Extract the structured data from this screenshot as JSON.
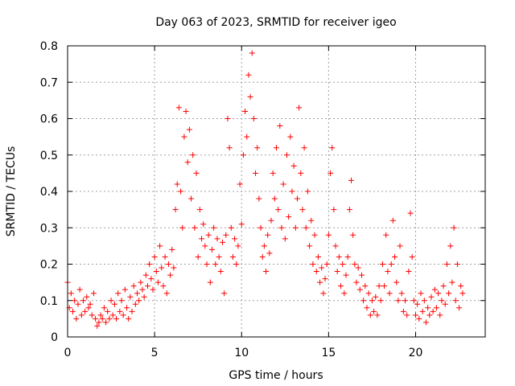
{
  "chart_data": {
    "type": "scatter",
    "title": "Day 063 of 2023, SRMTID for receiver igeo",
    "xlabel": "GPS time / hours",
    "ylabel": "SRMTID / TECUs",
    "xlim": [
      0,
      24
    ],
    "ylim": [
      0,
      0.8
    ],
    "xticks": [
      0,
      5,
      10,
      15,
      20
    ],
    "xtick_labels": [
      "0",
      "5",
      "10",
      "15",
      "20"
    ],
    "yticks": [
      0,
      0.1,
      0.2,
      0.3,
      0.4,
      0.5,
      0.6,
      0.7,
      0.8
    ],
    "ytick_labels": [
      "0",
      "0.1",
      "0.2",
      "0.3",
      "0.4",
      "0.5",
      "0.6",
      "0.7",
      "0.8"
    ],
    "grid": true,
    "marker": "plus",
    "color": "#ff0000",
    "series": [
      {
        "name": "SRMTID",
        "points": [
          [
            0.0,
            0.15
          ],
          [
            0.1,
            0.08
          ],
          [
            0.2,
            0.12
          ],
          [
            0.3,
            0.07
          ],
          [
            0.4,
            0.1
          ],
          [
            0.5,
            0.05
          ],
          [
            0.6,
            0.09
          ],
          [
            0.7,
            0.13
          ],
          [
            0.8,
            0.06
          ],
          [
            0.9,
            0.1
          ],
          [
            1.0,
            0.07
          ],
          [
            1.1,
            0.11
          ],
          [
            1.2,
            0.08
          ],
          [
            1.3,
            0.09
          ],
          [
            1.4,
            0.06
          ],
          [
            1.5,
            0.12
          ],
          [
            1.6,
            0.05
          ],
          [
            1.7,
            0.03
          ],
          [
            1.8,
            0.04
          ],
          [
            1.9,
            0.06
          ],
          [
            2.0,
            0.05
          ],
          [
            2.1,
            0.08
          ],
          [
            2.2,
            0.04
          ],
          [
            2.3,
            0.07
          ],
          [
            2.4,
            0.05
          ],
          [
            2.5,
            0.1
          ],
          [
            2.6,
            0.06
          ],
          [
            2.7,
            0.09
          ],
          [
            2.8,
            0.05
          ],
          [
            2.9,
            0.12
          ],
          [
            3.0,
            0.07
          ],
          [
            3.1,
            0.1
          ],
          [
            3.2,
            0.06
          ],
          [
            3.3,
            0.13
          ],
          [
            3.4,
            0.08
          ],
          [
            3.5,
            0.05
          ],
          [
            3.6,
            0.11
          ],
          [
            3.7,
            0.07
          ],
          [
            3.8,
            0.14
          ],
          [
            3.9,
            0.09
          ],
          [
            4.0,
            0.12
          ],
          [
            4.1,
            0.1
          ],
          [
            4.2,
            0.15
          ],
          [
            4.3,
            0.13
          ],
          [
            4.4,
            0.11
          ],
          [
            4.5,
            0.17
          ],
          [
            4.6,
            0.14
          ],
          [
            4.7,
            0.2
          ],
          [
            4.8,
            0.16
          ],
          [
            4.9,
            0.13
          ],
          [
            5.0,
            0.22
          ],
          [
            5.1,
            0.18
          ],
          [
            5.2,
            0.15
          ],
          [
            5.3,
            0.25
          ],
          [
            5.4,
            0.19
          ],
          [
            5.5,
            0.14
          ],
          [
            5.6,
            0.22
          ],
          [
            5.7,
            0.12
          ],
          [
            5.8,
            0.2
          ],
          [
            5.9,
            0.17
          ],
          [
            6.0,
            0.24
          ],
          [
            6.1,
            0.19
          ],
          [
            6.2,
            0.35
          ],
          [
            6.3,
            0.42
          ],
          [
            6.4,
            0.63
          ],
          [
            6.5,
            0.4
          ],
          [
            6.6,
            0.3
          ],
          [
            6.7,
            0.55
          ],
          [
            6.8,
            0.62
          ],
          [
            6.9,
            0.48
          ],
          [
            7.0,
            0.57
          ],
          [
            7.1,
            0.38
          ],
          [
            7.2,
            0.5
          ],
          [
            7.3,
            0.3
          ],
          [
            7.4,
            0.45
          ],
          [
            7.5,
            0.22
          ],
          [
            7.6,
            0.35
          ],
          [
            7.7,
            0.27
          ],
          [
            7.8,
            0.31
          ],
          [
            7.9,
            0.25
          ],
          [
            8.0,
            0.2
          ],
          [
            8.1,
            0.28
          ],
          [
            8.2,
            0.15
          ],
          [
            8.3,
            0.24
          ],
          [
            8.4,
            0.3
          ],
          [
            8.5,
            0.2
          ],
          [
            8.6,
            0.27
          ],
          [
            8.7,
            0.22
          ],
          [
            8.8,
            0.18
          ],
          [
            8.9,
            0.26
          ],
          [
            9.0,
            0.12
          ],
          [
            9.1,
            0.28
          ],
          [
            9.2,
            0.6
          ],
          [
            9.3,
            0.52
          ],
          [
            9.4,
            0.3
          ],
          [
            9.5,
            0.22
          ],
          [
            9.6,
            0.27
          ],
          [
            9.7,
            0.2
          ],
          [
            9.8,
            0.25
          ],
          [
            9.9,
            0.42
          ],
          [
            10.0,
            0.31
          ],
          [
            10.1,
            0.5
          ],
          [
            10.2,
            0.62
          ],
          [
            10.3,
            0.55
          ],
          [
            10.4,
            0.72
          ],
          [
            10.5,
            0.66
          ],
          [
            10.6,
            0.78
          ],
          [
            10.7,
            0.6
          ],
          [
            10.8,
            0.45
          ],
          [
            10.9,
            0.52
          ],
          [
            11.0,
            0.38
          ],
          [
            11.1,
            0.3
          ],
          [
            11.2,
            0.22
          ],
          [
            11.3,
            0.25
          ],
          [
            11.4,
            0.18
          ],
          [
            11.5,
            0.28
          ],
          [
            11.6,
            0.23
          ],
          [
            11.7,
            0.32
          ],
          [
            11.8,
            0.45
          ],
          [
            11.9,
            0.38
          ],
          [
            12.0,
            0.52
          ],
          [
            12.1,
            0.35
          ],
          [
            12.2,
            0.58
          ],
          [
            12.3,
            0.3
          ],
          [
            12.4,
            0.42
          ],
          [
            12.5,
            0.27
          ],
          [
            12.6,
            0.5
          ],
          [
            12.7,
            0.33
          ],
          [
            12.8,
            0.55
          ],
          [
            12.9,
            0.4
          ],
          [
            13.0,
            0.47
          ],
          [
            13.1,
            0.3
          ],
          [
            13.2,
            0.38
          ],
          [
            13.3,
            0.63
          ],
          [
            13.4,
            0.45
          ],
          [
            13.5,
            0.35
          ],
          [
            13.6,
            0.52
          ],
          [
            13.7,
            0.3
          ],
          [
            13.8,
            0.4
          ],
          [
            13.9,
            0.25
          ],
          [
            14.0,
            0.32
          ],
          [
            14.1,
            0.2
          ],
          [
            14.2,
            0.28
          ],
          [
            14.3,
            0.18
          ],
          [
            14.4,
            0.22
          ],
          [
            14.5,
            0.15
          ],
          [
            14.6,
            0.19
          ],
          [
            14.7,
            0.12
          ],
          [
            14.8,
            0.16
          ],
          [
            14.9,
            0.2
          ],
          [
            15.0,
            0.28
          ],
          [
            15.1,
            0.45
          ],
          [
            15.2,
            0.52
          ],
          [
            15.3,
            0.35
          ],
          [
            15.4,
            0.25
          ],
          [
            15.5,
            0.18
          ],
          [
            15.6,
            0.22
          ],
          [
            15.7,
            0.14
          ],
          [
            15.8,
            0.2
          ],
          [
            15.9,
            0.12
          ],
          [
            16.0,
            0.17
          ],
          [
            16.1,
            0.22
          ],
          [
            16.2,
            0.35
          ],
          [
            16.3,
            0.43
          ],
          [
            16.4,
            0.28
          ],
          [
            16.5,
            0.2
          ],
          [
            16.6,
            0.15
          ],
          [
            16.7,
            0.19
          ],
          [
            16.8,
            0.13
          ],
          [
            16.9,
            0.17
          ],
          [
            17.0,
            0.1
          ],
          [
            17.1,
            0.14
          ],
          [
            17.2,
            0.08
          ],
          [
            17.3,
            0.12
          ],
          [
            17.4,
            0.06
          ],
          [
            17.5,
            0.1
          ],
          [
            17.6,
            0.07
          ],
          [
            17.7,
            0.11
          ],
          [
            17.8,
            0.06
          ],
          [
            17.9,
            0.14
          ],
          [
            18.0,
            0.1
          ],
          [
            18.1,
            0.2
          ],
          [
            18.2,
            0.14
          ],
          [
            18.3,
            0.28
          ],
          [
            18.4,
            0.18
          ],
          [
            18.5,
            0.12
          ],
          [
            18.6,
            0.2
          ],
          [
            18.7,
            0.32
          ],
          [
            18.8,
            0.22
          ],
          [
            18.9,
            0.15
          ],
          [
            19.0,
            0.1
          ],
          [
            19.1,
            0.25
          ],
          [
            19.2,
            0.12
          ],
          [
            19.3,
            0.07
          ],
          [
            19.4,
            0.1
          ],
          [
            19.5,
            0.06
          ],
          [
            19.6,
            0.18
          ],
          [
            19.7,
            0.34
          ],
          [
            19.8,
            0.22
          ],
          [
            19.9,
            0.1
          ],
          [
            20.0,
            0.06
          ],
          [
            20.1,
            0.09
          ],
          [
            20.2,
            0.05
          ],
          [
            20.3,
            0.12
          ],
          [
            20.4,
            0.07
          ],
          [
            20.5,
            0.1
          ],
          [
            20.6,
            0.04
          ],
          [
            20.7,
            0.08
          ],
          [
            20.8,
            0.06
          ],
          [
            20.9,
            0.11
          ],
          [
            21.0,
            0.07
          ],
          [
            21.1,
            0.13
          ],
          [
            21.2,
            0.08
          ],
          [
            21.3,
            0.12
          ],
          [
            21.4,
            0.06
          ],
          [
            21.5,
            0.1
          ],
          [
            21.6,
            0.14
          ],
          [
            21.7,
            0.09
          ],
          [
            21.8,
            0.2
          ],
          [
            21.9,
            0.12
          ],
          [
            22.0,
            0.25
          ],
          [
            22.1,
            0.15
          ],
          [
            22.2,
            0.3
          ],
          [
            22.3,
            0.1
          ],
          [
            22.4,
            0.2
          ],
          [
            22.5,
            0.08
          ],
          [
            22.6,
            0.14
          ],
          [
            22.7,
            0.12
          ]
        ]
      }
    ]
  }
}
